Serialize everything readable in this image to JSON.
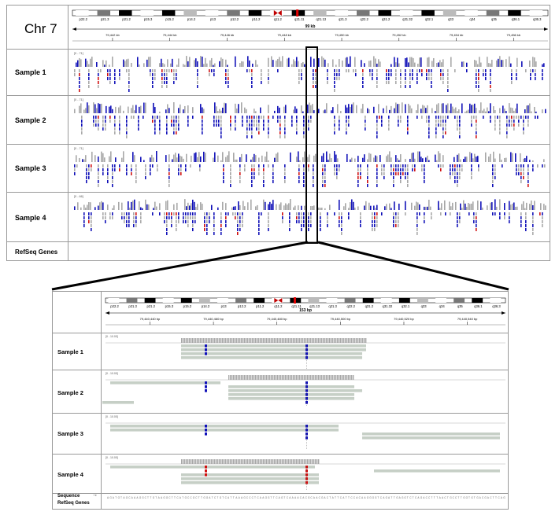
{
  "genome_view": {
    "chromosome": "Chr 7",
    "cytobands": [
      "p22.2",
      "p21.3",
      "p21.2",
      "p15.3",
      "p15.2",
      "p14.2",
      "p13",
      "p12.2",
      "p11.2",
      "q11.2",
      "q21.11",
      "q21.13",
      "q21.3",
      "q22.2",
      "q31.2",
      "q31.32",
      "q32.1",
      "q33",
      "q34",
      "q35",
      "q36.1",
      "q36.3"
    ],
    "overview": {
      "span_label": "99 kb",
      "ticks": [
        "79,442 kb",
        "79,444 kb",
        "79,446 kb",
        "79,448 kb",
        "79,450 kb",
        "79,452 kb",
        "79,454 kb",
        "79,456 kb"
      ],
      "range_labels": [
        "[0 - 71]",
        "[0 - 71]",
        "[0 - 71]",
        "[0 - 66]"
      ]
    },
    "zoom": {
      "span_label": "153 bp",
      "ticks": [
        "79,440,440 bp",
        "79,440,460 bp",
        "79,440,480 bp",
        "79,440,500 bp",
        "79,440,520 bp",
        "79,440,540 bp"
      ],
      "range_labels": [
        "[0 - 10.00]",
        "[0 - 10.00]",
        "[0 - 10.00]",
        "[0 - 10.00]"
      ]
    },
    "samples": [
      "Sample 1",
      "Sample 2",
      "Sample 3",
      "Sample 4"
    ],
    "refseq_label": "RefSeq Genes",
    "sequence_label": "Sequence",
    "sequence_arrow": "→",
    "colors": {
      "coverage": "#a8a8a8",
      "read": "#c6cfc6",
      "mismatch_blue": "#1010b8",
      "mismatch_red": "#d01010",
      "highlight": "#000000",
      "border": "#9a9a9a"
    }
  }
}
